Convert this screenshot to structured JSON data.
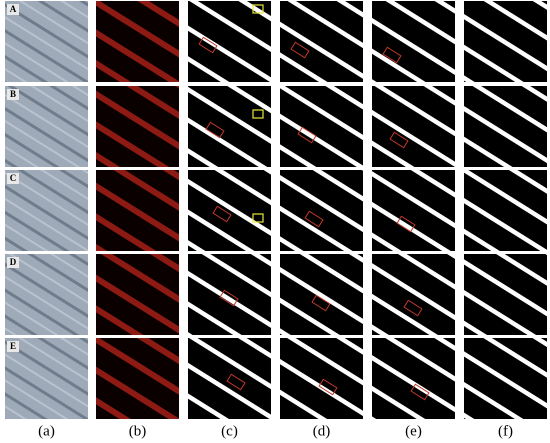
{
  "row_labels": [
    "A",
    "B",
    "C",
    "D",
    "E"
  ],
  "column_labels": [
    "(a)",
    "(b)",
    "(c)",
    "(d)",
    "(e)",
    "(f)"
  ]
}
